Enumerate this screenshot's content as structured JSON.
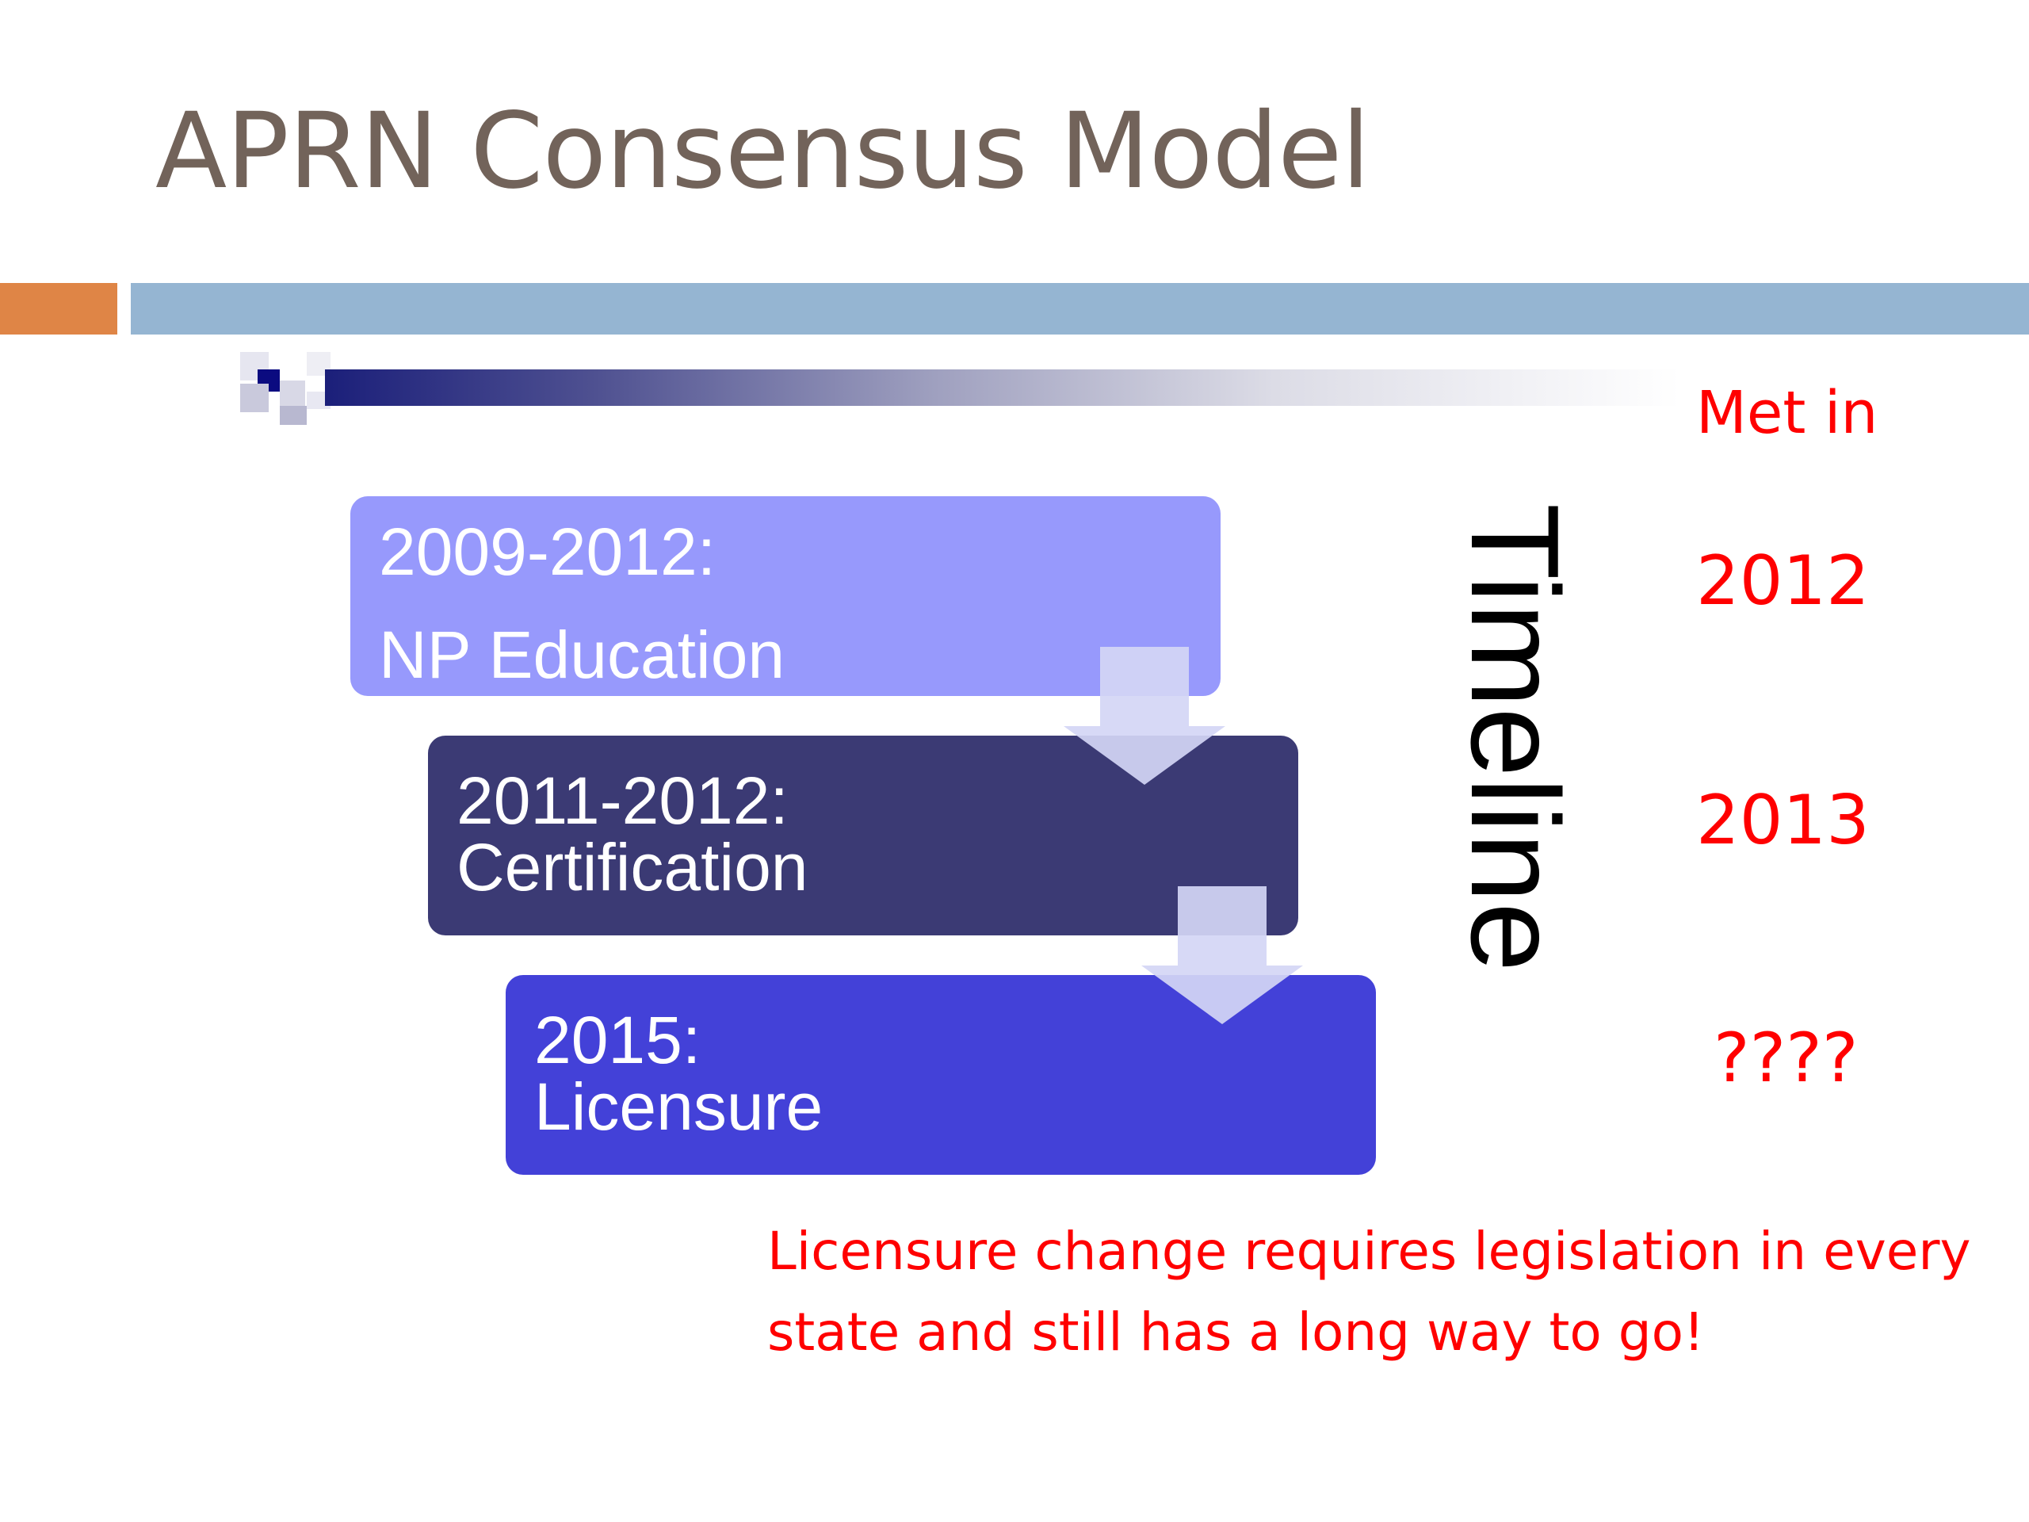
{
  "slide": {
    "title": "APRN Consensus Model",
    "colors": {
      "title": "#72635a",
      "accent_orange": "#df8546",
      "accent_blue": "#95b5d2",
      "box_education": "#9799fc",
      "box_certification": "#3b3a74",
      "box_licensure": "#4341d8",
      "arrow": "#d4d6f5",
      "emphasis_red": "#ff0000"
    },
    "timeline": {
      "label": "Timeline",
      "steps": [
        {
          "period": "2009-2012:",
          "name": "NP Education"
        },
        {
          "period": "2011-2012:",
          "name": "Certification"
        },
        {
          "period": "2015:",
          "name": "Licensure"
        }
      ]
    },
    "met_in": {
      "heading": "Met in",
      "values": [
        "2012",
        "2013",
        "????"
      ]
    },
    "note": "Licensure change requires legislation in every state and still has a long way to go!"
  }
}
